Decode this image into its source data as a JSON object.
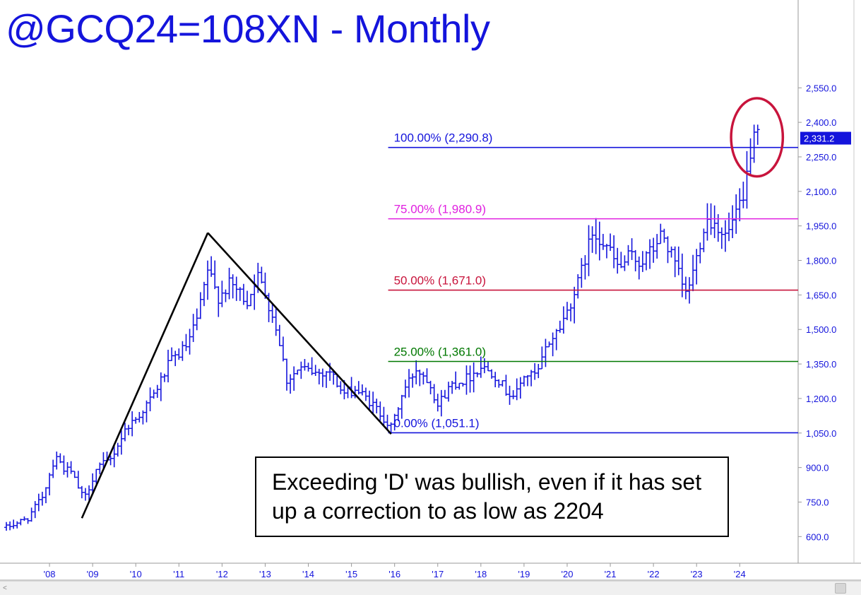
{
  "title": "@GCQ24=108XN - Monthly",
  "annotation": "Exceeding 'D' was bullish, even if it has set up a correction to as low as 2204",
  "colors": {
    "bars": "#1414dc",
    "axis_text": "#1414dc",
    "fib_100": "#1414dc",
    "fib_75": "#e020e0",
    "fib_50": "#c8143c",
    "fib_25": "#007800",
    "fib_0": "#1414dc",
    "pattern": "#000000",
    "circle": "#c8143c",
    "last_price_bg": "#1414dc"
  },
  "scrollbar": {
    "left_arrow": "<"
  },
  "chart_data": {
    "type": "ohlc",
    "title": "@GCQ24=108XN - Monthly",
    "ylim": [
      500,
      2650
    ],
    "xlim": [
      2007.0,
      2025.6
    ],
    "y_ticks": [
      {
        "v": 600,
        "label": "600.0"
      },
      {
        "v": 750,
        "label": "750.0"
      },
      {
        "v": 900,
        "label": "900.0"
      },
      {
        "v": 1050,
        "label": "1,050.0"
      },
      {
        "v": 1200,
        "label": "1,200.0"
      },
      {
        "v": 1350,
        "label": "1,350.0"
      },
      {
        "v": 1500,
        "label": "1,500.0"
      },
      {
        "v": 1650,
        "label": "1,650.0"
      },
      {
        "v": 1800,
        "label": "1,800.0"
      },
      {
        "v": 1950,
        "label": "1,950.0"
      },
      {
        "v": 2100,
        "label": "2,100.0"
      },
      {
        "v": 2250,
        "label": "2,250.0"
      },
      {
        "v": 2400,
        "label": "2,400.0"
      },
      {
        "v": 2550,
        "label": "2,550.0"
      }
    ],
    "x_ticks": [
      {
        "year": 2008,
        "label": "'08"
      },
      {
        "year": 2009,
        "label": "'09"
      },
      {
        "year": 2010,
        "label": "'10"
      },
      {
        "year": 2011,
        "label": "'11"
      },
      {
        "year": 2012,
        "label": "'12"
      },
      {
        "year": 2013,
        "label": "'13"
      },
      {
        "year": 2014,
        "label": "'14"
      },
      {
        "year": 2015,
        "label": "'15"
      },
      {
        "year": 2016,
        "label": "'16"
      },
      {
        "year": 2017,
        "label": "'17"
      },
      {
        "year": 2018,
        "label": "'18"
      },
      {
        "year": 2019,
        "label": "'19"
      },
      {
        "year": 2020,
        "label": "'20"
      },
      {
        "year": 2021,
        "label": "'21"
      },
      {
        "year": 2022,
        "label": "'22"
      },
      {
        "year": 2023,
        "label": "'23"
      },
      {
        "year": 2024,
        "label": "'24"
      }
    ],
    "last_price": {
      "v": 2331.2,
      "label": "2,331.2"
    },
    "fib_levels": [
      {
        "pct": "100.00%",
        "value": 2290.8,
        "label": "100.00% (2,290.8)",
        "color_key": "fib_100"
      },
      {
        "pct": "75.00%",
        "value": 1980.9,
        "label": "75.00% (1,980.9)",
        "color_key": "fib_75"
      },
      {
        "pct": "50.00%",
        "value": 1671.0,
        "label": "50.00% (1,671.0)",
        "color_key": "fib_50"
      },
      {
        "pct": "25.00%",
        "value": 1361.0,
        "label": "25.00% (1,361.0)",
        "color_key": "fib_25"
      },
      {
        "pct": "0.00%",
        "value": 1051.1,
        "label": "0.00% (1,051.1)",
        "color_key": "fib_0"
      }
    ],
    "fib_start_x": 2015.9,
    "pattern_points": [
      {
        "t": 2008.75,
        "price": 680
      },
      {
        "t": 2011.67,
        "price": 1920
      },
      {
        "t": 2015.92,
        "price": 1046
      }
    ],
    "highlight_circle": {
      "t": 2024.4,
      "price": 2335,
      "rt": 0.6,
      "rprice": 170
    },
    "ohlc_anchors": [
      [
        2007.0,
        640
      ],
      [
        2007.5,
        680
      ],
      [
        2007.85,
        780
      ],
      [
        2008.15,
        960
      ],
      [
        2008.3,
        900
      ],
      [
        2008.5,
        880
      ],
      [
        2008.8,
        760
      ],
      [
        2009.1,
        900
      ],
      [
        2009.4,
        930
      ],
      [
        2009.8,
        1080
      ],
      [
        2010.0,
        1110
      ],
      [
        2010.4,
        1210
      ],
      [
        2010.8,
        1360
      ],
      [
        2011.2,
        1430
      ],
      [
        2011.45,
        1560
      ],
      [
        2011.67,
        1760
      ],
      [
        2011.9,
        1640
      ],
      [
        2012.2,
        1700
      ],
      [
        2012.6,
        1620
      ],
      [
        2012.8,
        1740
      ],
      [
        2013.0,
        1660
      ],
      [
        2013.3,
        1480
      ],
      [
        2013.5,
        1280
      ],
      [
        2013.8,
        1330
      ],
      [
        2014.2,
        1310
      ],
      [
        2014.5,
        1320
      ],
      [
        2014.8,
        1220
      ],
      [
        2015.1,
        1240
      ],
      [
        2015.4,
        1190
      ],
      [
        2015.7,
        1130
      ],
      [
        2015.92,
        1070
      ],
      [
        2016.2,
        1230
      ],
      [
        2016.5,
        1330
      ],
      [
        2016.8,
        1280
      ],
      [
        2017.0,
        1170
      ],
      [
        2017.3,
        1260
      ],
      [
        2017.7,
        1290
      ],
      [
        2018.0,
        1340
      ],
      [
        2018.3,
        1310
      ],
      [
        2018.6,
        1230
      ],
      [
        2018.8,
        1210
      ],
      [
        2019.0,
        1300
      ],
      [
        2019.3,
        1300
      ],
      [
        2019.55,
        1440
      ],
      [
        2019.8,
        1500
      ],
      [
        2020.0,
        1580
      ],
      [
        2020.25,
        1700
      ],
      [
        2020.6,
        1930
      ],
      [
        2020.9,
        1870
      ],
      [
        2021.2,
        1760
      ],
      [
        2021.45,
        1820
      ],
      [
        2021.7,
        1790
      ],
      [
        2022.0,
        1850
      ],
      [
        2022.2,
        1920
      ],
      [
        2022.5,
        1780
      ],
      [
        2022.75,
        1650
      ],
      [
        2022.95,
        1770
      ],
      [
        2023.2,
        1980
      ],
      [
        2023.45,
        1960
      ],
      [
        2023.7,
        1900
      ],
      [
        2023.9,
        2000
      ],
      [
        2024.1,
        2050
      ],
      [
        2024.2,
        2230
      ],
      [
        2024.3,
        2320
      ],
      [
        2024.45,
        2330
      ]
    ]
  }
}
